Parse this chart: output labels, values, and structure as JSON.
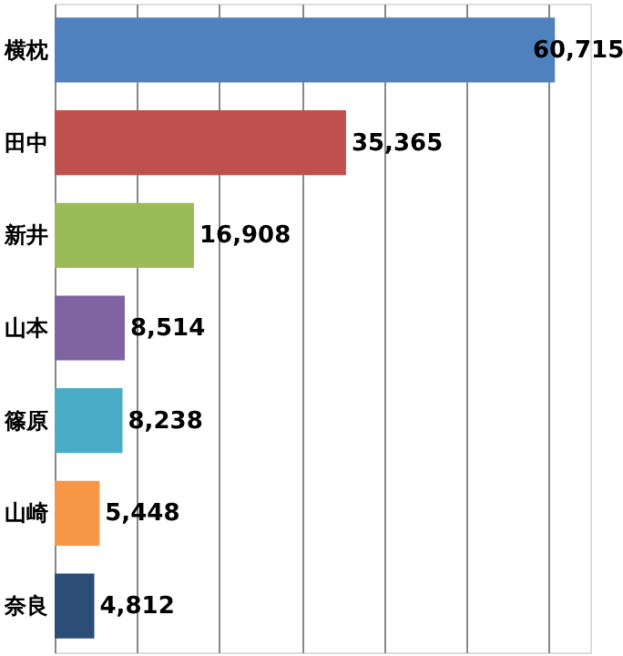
{
  "chart_data": {
    "type": "bar",
    "orientation": "horizontal",
    "categories": [
      "横枕",
      "田中",
      "新井",
      "山本",
      "篠原",
      "山崎",
      "奈良"
    ],
    "values": [
      60715,
      35365,
      16908,
      8514,
      8238,
      5448,
      4812
    ],
    "value_labels": [
      "60,715",
      "35,365",
      "16,908",
      "8,514",
      "8,238",
      "5,448",
      "4,812"
    ],
    "colors": [
      "#4f81bd",
      "#c0504d",
      "#9bbb59",
      "#8064a2",
      "#4bacc6",
      "#f79646",
      "#2c4d75"
    ],
    "grid": "x",
    "tick_labels": "y"
  }
}
